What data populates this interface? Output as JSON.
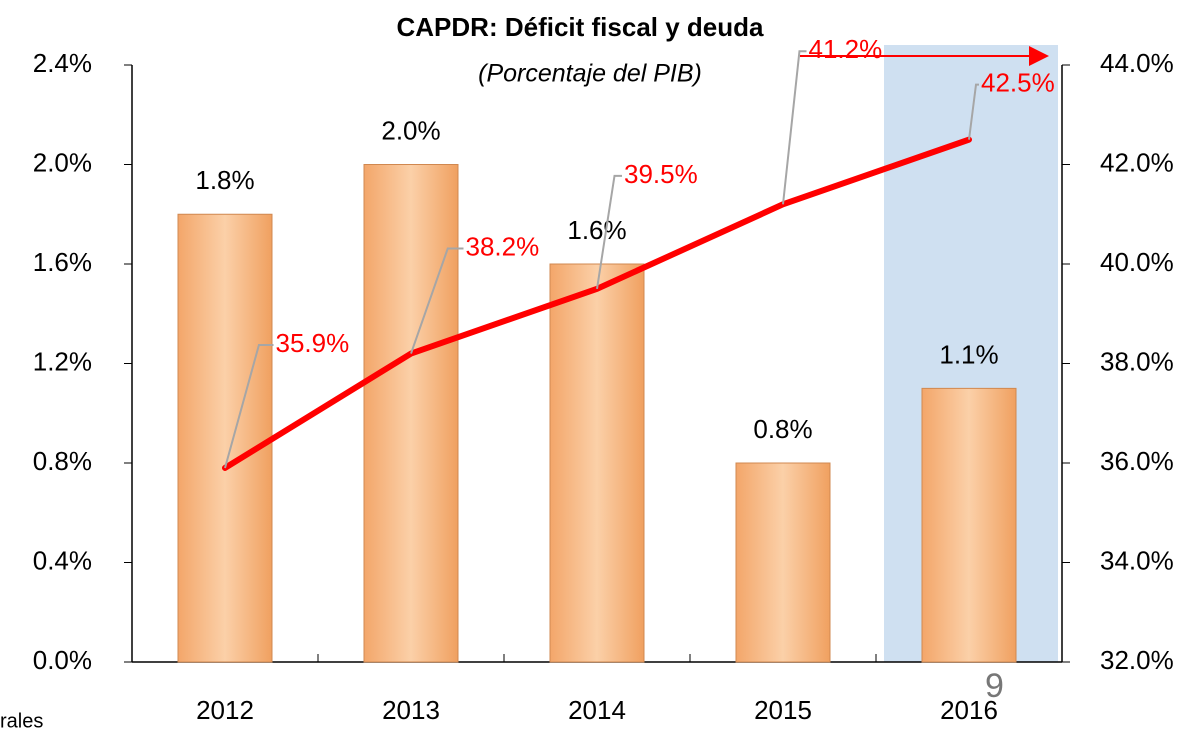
{
  "chart_data": {
    "type": "bar",
    "title": "CAPDR: Déficit fiscal y deuda",
    "subtitle": "(Porcentaje del PIB)",
    "categories": [
      "2012",
      "2013",
      "2014",
      "2015",
      "2016"
    ],
    "series": [
      {
        "type": "bar",
        "color": "#f6b886",
        "values": [
          1.8,
          2.0,
          1.6,
          0.8,
          1.1
        ],
        "value_labels": [
          "1.8%",
          "2.0%",
          "1.6%",
          "0.8%",
          "1.1%"
        ]
      },
      {
        "type": "line",
        "axis": "y2",
        "color": "#ff0000",
        "values": [
          35.9,
          38.2,
          39.5,
          41.2,
          42.5
        ],
        "value_labels": [
          "35.9%",
          "38.2%",
          "39.5%",
          "41.2%",
          "42.5%"
        ]
      }
    ],
    "ylim": [
      0,
      2.4
    ],
    "yticks": [
      {
        "value": 0,
        "label": "0.0%"
      },
      {
        "value": 0.4,
        "label": "0.4%"
      },
      {
        "value": 0.8,
        "label": "0.8%"
      },
      {
        "value": 1.2,
        "label": "1.2%"
      },
      {
        "value": 1.6,
        "label": "1.6%"
      },
      {
        "value": 2.0,
        "label": "2.0%"
      },
      {
        "value": 2.4,
        "label": "2.4%"
      }
    ],
    "y2lim": [
      32,
      44
    ],
    "y2ticks": [
      {
        "value": 32,
        "label": "32.0%"
      },
      {
        "value": 34,
        "label": "34.0%"
      },
      {
        "value": 36,
        "label": "36.0%"
      },
      {
        "value": 38,
        "label": "38.0%"
      },
      {
        "value": 40,
        "label": "40.0%"
      },
      {
        "value": 42,
        "label": "42.0%"
      },
      {
        "value": 44,
        "label": "44.0%"
      }
    ],
    "grid": false,
    "footnote": "rales",
    "page_number": "9"
  }
}
